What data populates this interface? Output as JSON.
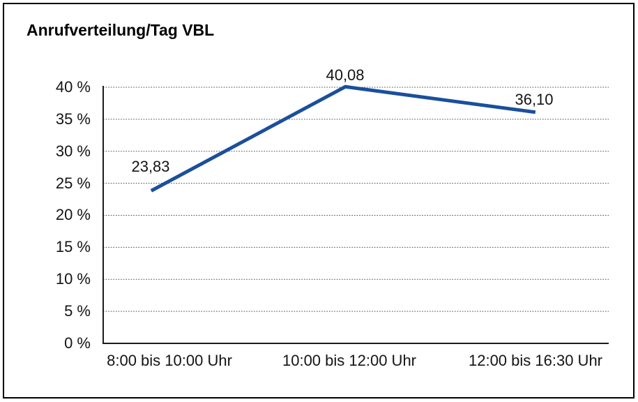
{
  "chart_data": {
    "type": "line",
    "title": "Anrufverteilung/Tag VBL",
    "categories": [
      "8:00 bis 10:00 Uhr",
      "10:00 bis 12:00 Uhr",
      "12:00 bis 16:30 Uhr"
    ],
    "values": [
      23.83,
      40.08,
      36.1
    ],
    "point_labels": [
      "23,83",
      "40,08",
      "36,10"
    ],
    "y_ticks": [
      0,
      5,
      10,
      15,
      20,
      25,
      30,
      35,
      40
    ],
    "y_tick_labels": [
      "0 %",
      "5 %",
      "10 %",
      "15 %",
      "20 %",
      "25 %",
      "30 %",
      "35 %",
      "40 %"
    ],
    "ylim": [
      0,
      40
    ],
    "xlabel": "",
    "ylabel": "",
    "legend": "none",
    "grid": "horizontal-dotted",
    "line_color": "#1A4F9C"
  },
  "colors": {
    "accent": "#1A4F9C",
    "frame": "#000000",
    "grid": "#4A4A4A",
    "text": "#141414",
    "background": "#FFFFFF"
  }
}
